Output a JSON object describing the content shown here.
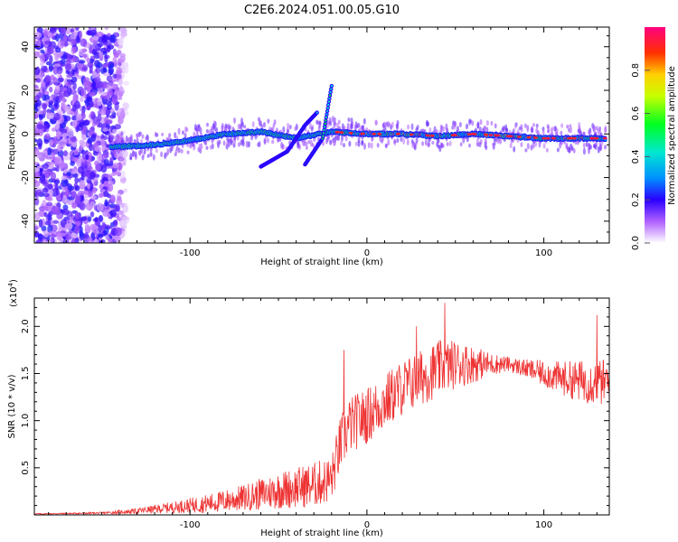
{
  "title": "C2E6.2024.051.00.05.G10",
  "chart_data": [
    {
      "type": "heatmap",
      "xlabel": "Height of straight line (km)",
      "ylabel": "Frequency (Hz)",
      "xlim": [
        -188,
        137
      ],
      "ylim": [
        -50,
        49
      ],
      "xticks": [
        -100,
        0,
        100
      ],
      "yticks": [
        -40,
        -20,
        0,
        20,
        40
      ],
      "xtick_labels": [
        "-100",
        "0",
        "100"
      ],
      "ytick_labels": [
        "-40",
        "-20",
        "0",
        "20",
        "40"
      ],
      "colorbar": {
        "label": "Normalized spectral amplitude",
        "range": [
          0,
          1
        ],
        "ticks": [
          0.0,
          0.2,
          0.4,
          0.6,
          0.8
        ],
        "tick_labels": [
          "0.0",
          "0.2",
          "0.4",
          "0.6",
          "0.8"
        ]
      },
      "features": [
        {
          "name": "noise-region",
          "x_range": [
            -188,
            -135
          ],
          "freq_range": [
            -50,
            49
          ],
          "amplitude": 0.15
        },
        {
          "name": "main-band",
          "points": [
            [
              -145,
              -6
            ],
            [
              -120,
              -5
            ],
            [
              -100,
              -3
            ],
            [
              -80,
              0
            ],
            [
              -60,
              1
            ],
            [
              -40,
              -2
            ],
            [
              -20,
              1
            ],
            [
              0,
              0
            ],
            [
              20,
              0
            ],
            [
              40,
              -1
            ],
            [
              60,
              0
            ],
            [
              80,
              -1
            ],
            [
              100,
              -2
            ],
            [
              120,
              -2
            ],
            [
              135,
              -2
            ]
          ],
          "amplitude": 0.45,
          "peak_amplitude": 0.95
        },
        {
          "name": "branch-1",
          "points": [
            [
              -60,
              -15
            ],
            [
              -45,
              -8
            ],
            [
              -35,
              4
            ],
            [
              -28,
              10
            ]
          ]
        },
        {
          "name": "branch-2",
          "points": [
            [
              -35,
              -14
            ],
            [
              -25,
              -2
            ],
            [
              -20,
              22
            ]
          ]
        }
      ]
    },
    {
      "type": "line",
      "xlabel": "Height of straight line (km)",
      "ylabel": "SNR (10 * v/v)",
      "multiplier_label": "(x10",
      "multiplier_exp": "4",
      "multiplier_close": ")",
      "xlim": [
        -188,
        137
      ],
      "ylim": [
        0,
        2.3
      ],
      "xticks": [
        -100,
        0,
        100
      ],
      "yticks": [
        0.5,
        1.0,
        1.5,
        2.0
      ],
      "xtick_labels": [
        "-100",
        "0",
        "100"
      ],
      "ytick_labels": [
        "0.5",
        "1.0",
        "1.5",
        "2.0"
      ],
      "color": "#ee3333",
      "envelope": {
        "x": [
          -188,
          -150,
          -130,
          -110,
          -90,
          -70,
          -50,
          -30,
          -20,
          -15,
          -10,
          0,
          10,
          20,
          30,
          40,
          50,
          60,
          70,
          80,
          90,
          100,
          110,
          120,
          137
        ],
        "base": [
          0.01,
          0.02,
          0.04,
          0.08,
          0.12,
          0.18,
          0.26,
          0.32,
          0.38,
          0.75,
          0.95,
          1.05,
          1.2,
          1.35,
          1.45,
          1.55,
          1.6,
          1.6,
          1.6,
          1.6,
          1.55,
          1.5,
          1.45,
          1.42,
          1.4
        ],
        "noise": [
          0.005,
          0.01,
          0.03,
          0.06,
          0.1,
          0.14,
          0.2,
          0.24,
          0.25,
          0.3,
          0.3,
          0.3,
          0.3,
          0.3,
          0.3,
          0.3,
          0.26,
          0.2,
          0.12,
          0.08,
          0.1,
          0.14,
          0.18,
          0.22,
          0.26
        ]
      },
      "peaks": [
        {
          "x": -13,
          "y": 1.75
        },
        {
          "x": 28,
          "y": 2.0
        },
        {
          "x": 44,
          "y": 2.25
        },
        {
          "x": 130,
          "y": 2.12
        }
      ]
    }
  ]
}
